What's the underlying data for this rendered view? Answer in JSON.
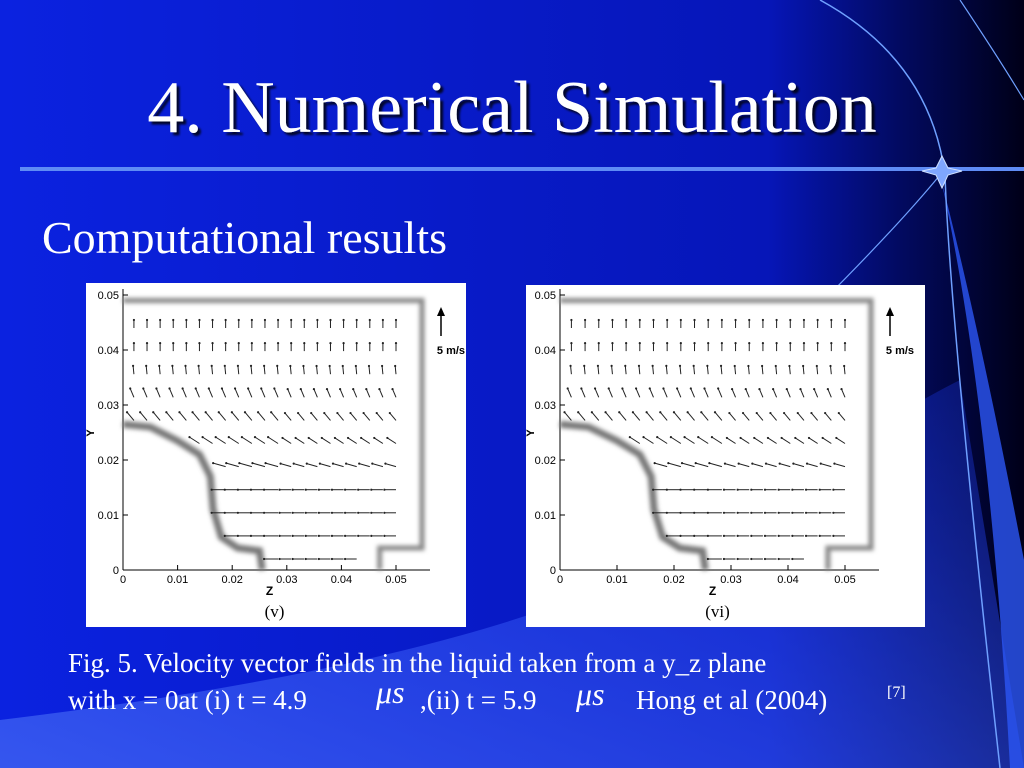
{
  "title": "4. Numerical Simulation",
  "subtitle": "Computational results",
  "figures": [
    {
      "y_axis_label": "Y",
      "x_axis_label": "Z",
      "yticks": [
        0,
        0.01,
        0.02,
        0.03,
        0.04,
        0.05
      ],
      "xticks": [
        0,
        0.01,
        0.02,
        0.03,
        0.04,
        0.05
      ],
      "scale_label": "5 m/s",
      "caption": "(v)"
    },
    {
      "y_axis_label": "Y",
      "x_axis_label": "Z",
      "yticks": [
        0,
        0.01,
        0.02,
        0.03,
        0.04,
        0.05
      ],
      "xticks": [
        0,
        0.01,
        0.02,
        0.03,
        0.04,
        0.05
      ],
      "scale_label": "5 m/s",
      "caption": "(vi)"
    }
  ],
  "caption": {
    "line1": "Fig. 5. Velocity vector fields in the liquid taken from a y_z plane",
    "line2": "with x = 0at (i) t = 4.9",
    "unit1": "μs",
    "line2b": ",(ii) t = 5.9",
    "unit2": "μs",
    "reference": "Hong et al (2004)",
    "citation": "[7]"
  }
}
